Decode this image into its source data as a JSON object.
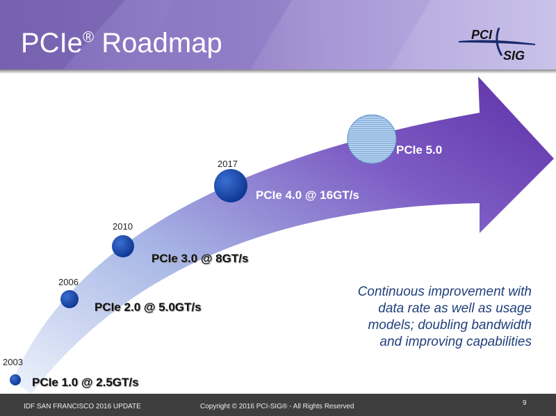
{
  "slide": {
    "title": "PCIe",
    "title_sup": "®",
    "title_rest": " Roadmap",
    "logo_top": "PCI",
    "logo_bottom": "SIG"
  },
  "milestones": [
    {
      "year": "2003",
      "label": "PCIe 1.0 @ 2.5GT/s"
    },
    {
      "year": "2006",
      "label": "PCIe 2.0 @ 5.0GT/s"
    },
    {
      "year": "2010",
      "label": "PCIe 3.0 @ 8GT/s"
    },
    {
      "year": "2017",
      "label": "PCIe 4.0 @ 16GT/s"
    },
    {
      "label": "PCIe 5.0"
    }
  ],
  "note": [
    "Continuous improvement with",
    "data rate as well as usage",
    "models; doubling bandwidth",
    "and improving capabilities"
  ],
  "footer": {
    "left": "IDF SAN FRANCISCO 2016 UPDATE",
    "center": "Copyright © 2016 PCI-SIG® - All Rights Reserved",
    "page": "9"
  },
  "colors": {
    "header": "#7d68b8",
    "arrow_start": "#dde6f5",
    "arrow_end": "#6a3fb0",
    "dot": "#1a47a8",
    "note": "#1f3f7a"
  }
}
